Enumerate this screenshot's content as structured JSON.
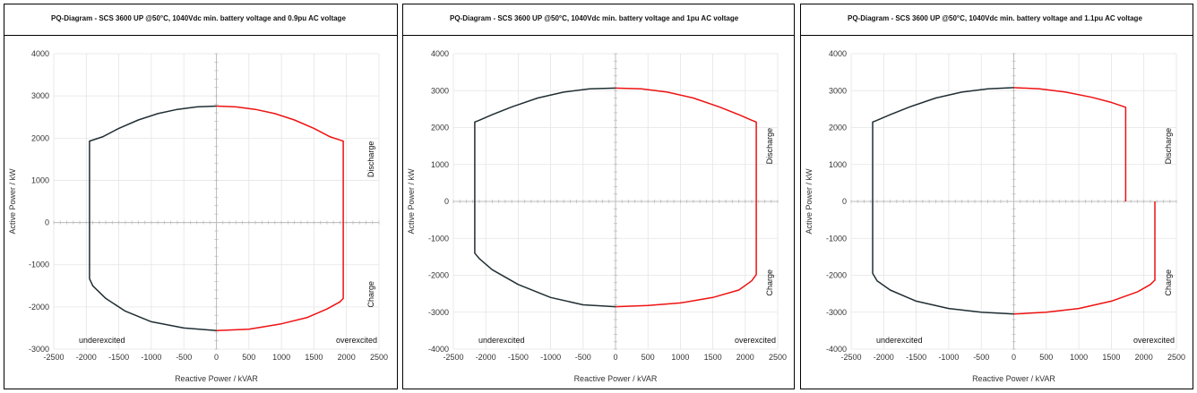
{
  "colors": {
    "underexcited_curve": "#1f2e33",
    "overexcited_curve": "#ee1111",
    "grid": "#e4e4e4",
    "axis": "#bdbdbd"
  },
  "chart_data": [
    {
      "type": "line",
      "title": "PQ-Diagram - SCS 3600 UP @50°C, 1040Vdc min. battery voltage  and 0.9pu AC voltage",
      "xlabel": "Reactive Power / kVAR",
      "ylabel": "Active Power / kW",
      "xlim": [
        -2500,
        2500
      ],
      "ylim": [
        -3000,
        4000
      ],
      "xticks": [
        -2500,
        -2000,
        -1500,
        -1000,
        -500,
        0,
        500,
        1000,
        1500,
        2000,
        2500
      ],
      "yticks": [
        -3000,
        -2000,
        -1000,
        0,
        1000,
        2000,
        3000,
        4000
      ],
      "grid": true,
      "annotations": [
        "Discharge",
        "Charge",
        "underexcited",
        "overexcited"
      ],
      "series": [
        {
          "color": "#1f2e33",
          "x": [
            0,
            -300,
            -600,
            -900,
            -1200,
            -1500,
            -1750,
            -1950,
            -1950,
            -1950,
            -1900,
            -1700,
            -1400,
            -1000,
            -500,
            0
          ],
          "y": [
            2760,
            2740,
            2680,
            2580,
            2430,
            2230,
            2030,
            1930,
            0,
            -1330,
            -1500,
            -1800,
            -2100,
            -2350,
            -2500,
            -2560
          ]
        },
        {
          "color": "#ee1111",
          "x": [
            0,
            300,
            600,
            900,
            1200,
            1500,
            1750,
            1950,
            1950,
            1950,
            1900,
            1700,
            1400,
            1000,
            500,
            0
          ],
          "y": [
            2760,
            2740,
            2680,
            2580,
            2430,
            2230,
            2030,
            1930,
            0,
            -1800,
            -1880,
            -2050,
            -2250,
            -2400,
            -2530,
            -2560
          ]
        }
      ]
    },
    {
      "type": "line",
      "title": "PQ-Diagram - SCS 3600 UP @50°C, 1040Vdc min. battery voltage  and 1pu AC voltage",
      "xlabel": "Reactive Power / kVAR",
      "ylabel": "Active Power / kW",
      "xlim": [
        -2500,
        2500
      ],
      "ylim": [
        -4000,
        4000
      ],
      "xticks": [
        -2500,
        -2000,
        -1500,
        -1000,
        -500,
        0,
        500,
        1000,
        1500,
        2000,
        2500
      ],
      "yticks": [
        -4000,
        -3000,
        -2000,
        -1000,
        0,
        1000,
        2000,
        3000,
        4000
      ],
      "grid": true,
      "annotations": [
        "Discharge",
        "Charge",
        "underexcited",
        "overexcited"
      ],
      "series": [
        {
          "color": "#1f2e33",
          "x": [
            0,
            -400,
            -800,
            -1200,
            -1600,
            -1900,
            -2100,
            -2170,
            -2170,
            -2170,
            -2100,
            -1900,
            -1500,
            -1000,
            -500,
            0
          ],
          "y": [
            3070,
            3050,
            2960,
            2800,
            2560,
            2350,
            2200,
            2150,
            0,
            -1400,
            -1550,
            -1850,
            -2250,
            -2600,
            -2800,
            -2850
          ]
        },
        {
          "color": "#ee1111",
          "x": [
            0,
            400,
            800,
            1200,
            1600,
            1900,
            2100,
            2170,
            2170,
            2170,
            2100,
            1900,
            1500,
            1000,
            500,
            0
          ],
          "y": [
            3070,
            3050,
            2960,
            2800,
            2560,
            2350,
            2200,
            2150,
            0,
            -1980,
            -2150,
            -2400,
            -2600,
            -2750,
            -2820,
            -2850
          ]
        }
      ]
    },
    {
      "type": "line",
      "title": "PQ-Diagram - SCS 3600 UP @50°C, 1040Vdc min. battery voltage  and 1.1pu AC voltage",
      "xlabel": "Reactive Power / kVAR",
      "ylabel": "Active Power / kW",
      "xlim": [
        -2500,
        2500
      ],
      "ylim": [
        -4000,
        4000
      ],
      "xticks": [
        -2500,
        -2000,
        -1500,
        -1000,
        -500,
        0,
        500,
        1000,
        1500,
        2000,
        2500
      ],
      "yticks": [
        -4000,
        -3000,
        -2000,
        -1000,
        0,
        1000,
        2000,
        3000,
        4000
      ],
      "grid": true,
      "annotations": [
        "Discharge",
        "Charge",
        "underexcited",
        "overexcited"
      ],
      "series": [
        {
          "color": "#1f2e33",
          "x": [
            0,
            -400,
            -800,
            -1200,
            -1600,
            -1900,
            -2100,
            -2170,
            -2170,
            -2170,
            -2100,
            -1900,
            -1500,
            -1000,
            -500,
            0
          ],
          "y": [
            3080,
            3050,
            2960,
            2800,
            2560,
            2350,
            2200,
            2150,
            0,
            -1950,
            -2150,
            -2400,
            -2700,
            -2900,
            -3000,
            -3050
          ]
        },
        {
          "color": "#ee1111",
          "x": [
            0,
            400,
            800,
            1200,
            1500,
            1720,
            1720,
            1720
          ],
          "y": [
            3080,
            3050,
            2960,
            2820,
            2680,
            2550,
            0,
            0
          ]
        },
        {
          "color": "#ee1111",
          "x": [
            2170,
            2170,
            2170,
            2100,
            1900,
            1500,
            1000,
            500,
            0
          ],
          "y": [
            0,
            -2000,
            -2130,
            -2250,
            -2450,
            -2700,
            -2900,
            -3000,
            -3050
          ]
        }
      ]
    }
  ]
}
